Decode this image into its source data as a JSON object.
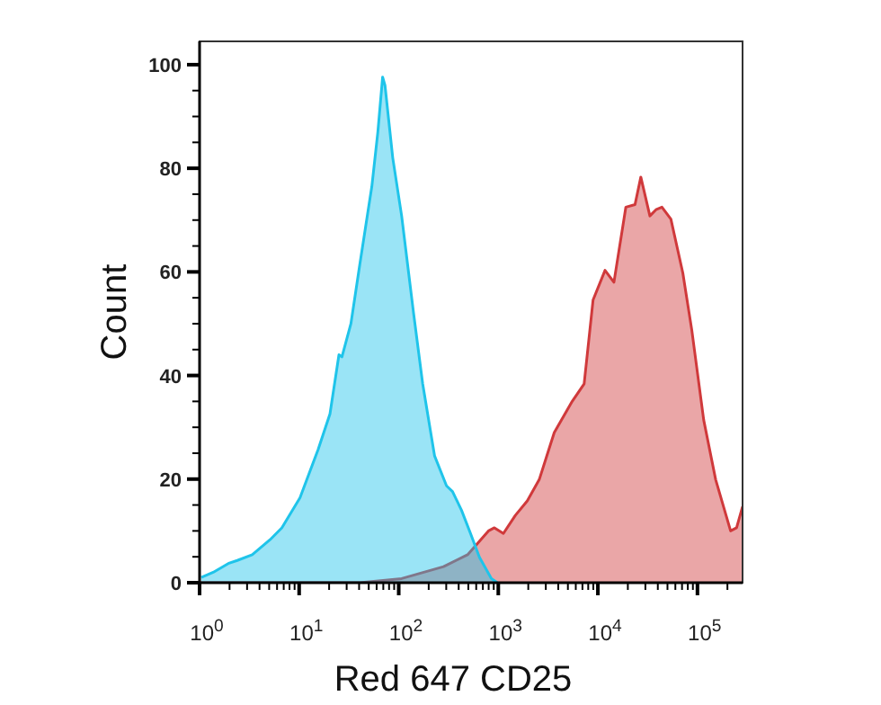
{
  "chart_data": {
    "type": "area",
    "xlabel": "Red 647 CD25",
    "ylabel": "Count",
    "log": "x",
    "grid": false,
    "xlim": [
      1,
      283800
    ],
    "ylim": [
      0,
      104.5
    ],
    "xticks": [
      {
        "value": 1,
        "label": "10$^{0}$"
      },
      {
        "value": 2,
        "label": null
      },
      {
        "value": 3,
        "label": null
      },
      {
        "value": 4,
        "label": null
      },
      {
        "value": 5,
        "label": null
      },
      {
        "value": 6,
        "label": null
      },
      {
        "value": 7,
        "label": null
      },
      {
        "value": 8,
        "label": null
      },
      {
        "value": 9,
        "label": null
      },
      {
        "value": 10,
        "label": "10$^{1}$"
      },
      {
        "value": 20,
        "label": null
      },
      {
        "value": 30,
        "label": null
      },
      {
        "value": 40,
        "label": null
      },
      {
        "value": 50,
        "label": null
      },
      {
        "value": 60,
        "label": null
      },
      {
        "value": 70,
        "label": null
      },
      {
        "value": 80,
        "label": null
      },
      {
        "value": 90,
        "label": null
      },
      {
        "value": 100,
        "label": "10$^{2}$"
      },
      {
        "value": 200,
        "label": null
      },
      {
        "value": 300,
        "label": null
      },
      {
        "value": 400,
        "label": null
      },
      {
        "value": 500,
        "label": null
      },
      {
        "value": 600,
        "label": null
      },
      {
        "value": 700,
        "label": null
      },
      {
        "value": 800,
        "label": null
      },
      {
        "value": 900,
        "label": null
      },
      {
        "value": 1000,
        "label": "10$^{3}$"
      },
      {
        "value": 2000,
        "label": null
      },
      {
        "value": 3000,
        "label": null
      },
      {
        "value": 4000,
        "label": null
      },
      {
        "value": 5000,
        "label": null
      },
      {
        "value": 6000,
        "label": null
      },
      {
        "value": 7000,
        "label": null
      },
      {
        "value": 8000,
        "label": null
      },
      {
        "value": 9000,
        "label": null
      },
      {
        "value": 10000,
        "label": "10$^{4}$"
      },
      {
        "value": 20000,
        "label": null
      },
      {
        "value": 30000,
        "label": null
      },
      {
        "value": 40000,
        "label": null
      },
      {
        "value": 50000,
        "label": null
      },
      {
        "value": 60000,
        "label": null
      },
      {
        "value": 70000,
        "label": null
      },
      {
        "value": 80000,
        "label": null
      },
      {
        "value": 90000,
        "label": null
      },
      {
        "value": 100000,
        "label": "10$^{5}$"
      },
      {
        "value": 200000,
        "label": null
      }
    ],
    "yticks": [
      0,
      {
        "value": 5,
        "label": null
      },
      {
        "value": 10,
        "label": null
      },
      {
        "value": 15,
        "label": null
      },
      20,
      {
        "value": 25,
        "label": null
      },
      {
        "value": 30,
        "label": null
      },
      {
        "value": 35,
        "label": null
      },
      40,
      {
        "value": 45,
        "label": null
      },
      {
        "value": 50,
        "label": null
      },
      {
        "value": 55,
        "label": null
      },
      60,
      {
        "value": 65,
        "label": null
      },
      {
        "value": 70,
        "label": null
      },
      {
        "value": 75,
        "label": null
      },
      80,
      {
        "value": 85,
        "label": null
      },
      {
        "value": 90,
        "label": null
      },
      {
        "value": 95,
        "label": null
      },
      100
    ],
    "series": [
      {
        "color": "#d0393b",
        "x": [
          1,
          40.7,
          107,
          282,
          491,
          796,
          914,
          1125,
          1483,
          1955,
          2577,
          3648,
          5521,
          7278,
          8954,
          11800,
          14500,
          19100,
          23600,
          27000,
          33300,
          38300,
          44000,
          54100,
          71300,
          87700,
          115600,
          152400,
          215300,
          247200,
          283800
        ],
        "values": [
          0,
          0,
          0.8,
          3.1,
          5.4,
          10,
          10.6,
          9.5,
          13,
          15.8,
          19.9,
          29,
          35,
          38.4,
          54.6,
          60.3,
          58,
          72.5,
          73,
          78.3,
          70.8,
          72,
          72.5,
          70.2,
          59.8,
          48.8,
          31.4,
          19.9,
          10,
          10.6,
          14.7
        ]
      },
      {
        "color": "#1fc4ea",
        "x": [
          1.04,
          1.37,
          1.94,
          2.39,
          3.38,
          5.1,
          6.7,
          10.2,
          15.5,
          20.4,
          25.1,
          26.9,
          33.1,
          40.7,
          53.7,
          61.7,
          68.9,
          72.8,
          87.1,
          107,
          141,
          174,
          229,
          302,
          347,
          427,
          526,
          647,
          853,
          979
        ],
        "values": [
          1,
          2,
          3.7,
          4.3,
          5.4,
          8.3,
          10.6,
          16.4,
          25.7,
          32.6,
          44,
          43.6,
          50,
          61.5,
          76.5,
          87,
          97.6,
          96,
          82,
          70.8,
          52,
          38.4,
          24.5,
          18.7,
          17.6,
          14,
          9.5,
          4.9,
          0.8,
          0
        ]
      }
    ]
  }
}
